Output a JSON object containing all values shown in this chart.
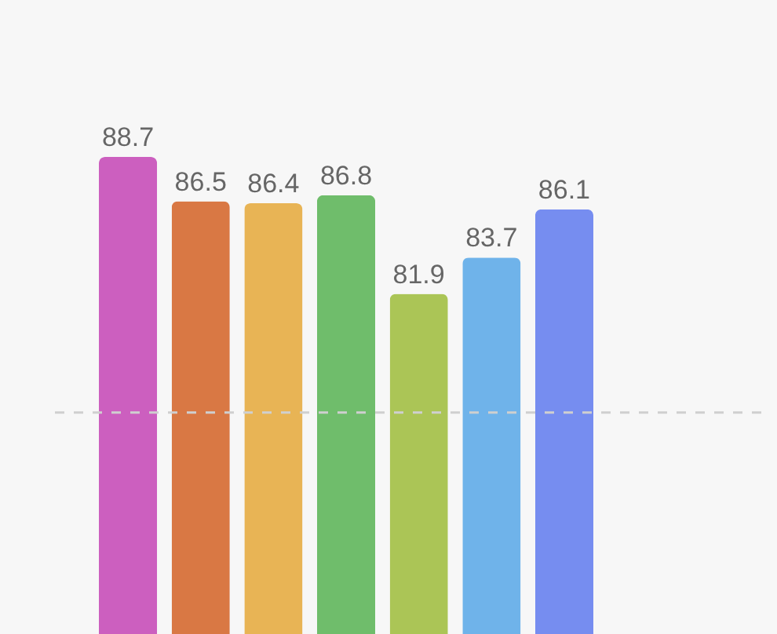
{
  "chart_data": {
    "type": "bar",
    "categories": [
      null,
      null,
      null,
      null,
      null,
      null,
      null
    ],
    "values": [
      88.7,
      86.5,
      86.4,
      86.8,
      81.9,
      83.7,
      86.1
    ],
    "colors": [
      "#cc5fbf",
      "#d97844",
      "#e8b455",
      "#6fbd6b",
      "#abc556",
      "#6fb3ea",
      "#768df0"
    ],
    "data_labels": true,
    "ylim": [
      65,
      96.5
    ],
    "ref_lines": [
      {
        "axis": "y",
        "value": 76,
        "color": "#cfcfcf",
        "line_style": "dashed"
      }
    ]
  }
}
